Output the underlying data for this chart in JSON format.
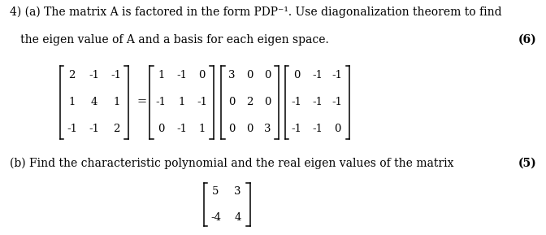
{
  "bg_color": "#ffffff",
  "text_color": "#000000",
  "fig_width": 6.72,
  "fig_height": 2.89,
  "dpi": 100,
  "line1": "4) (a) The matrix A is factored in the form PDP⁻¹. Use diagonalization theorem to find",
  "line2": "   the eigen value of A and a basis for each eigen space.",
  "marks_a": "(6)",
  "line_b": "(b) Find the characteristic polynomial and the real eigen values of the matrix",
  "marks_b": "(5)",
  "font_size_text": 10.0,
  "font_family": "DejaVu Serif",
  "A_rows": [
    [
      "2",
      "-1",
      "-1"
    ],
    [
      "1",
      "4",
      "1"
    ],
    [
      "-1",
      "-1",
      "2"
    ]
  ],
  "P_rows": [
    [
      "1",
      "-1",
      "0"
    ],
    [
      "-1",
      "1",
      "-1"
    ],
    [
      "0",
      "-1",
      "1"
    ]
  ],
  "D_rows": [
    [
      "3",
      "0",
      "0"
    ],
    [
      "0",
      "2",
      "0"
    ],
    [
      "0",
      "0",
      "3"
    ]
  ],
  "Pi_rows": [
    [
      "0",
      "-1",
      "-1"
    ],
    [
      "-1",
      "-1",
      "-1"
    ],
    [
      "-1",
      "-1",
      "0"
    ]
  ],
  "b_rows": [
    [
      "5",
      "3"
    ],
    [
      "-4",
      "4"
    ]
  ]
}
